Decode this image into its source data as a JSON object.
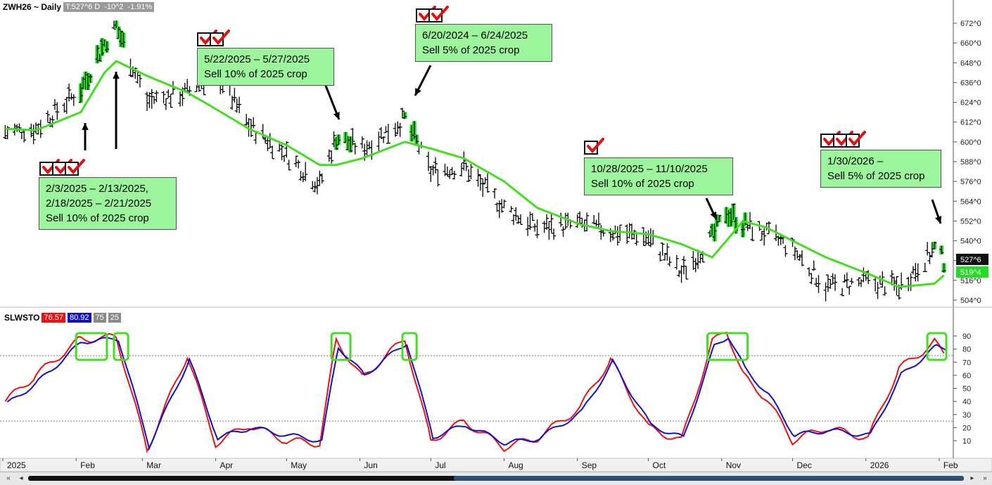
{
  "header": {
    "symbol": "ZWH26 ~ Daily",
    "quote": "T:527^6 D",
    "change": "-10^2",
    "change_pct": "-1.91%"
  },
  "oscillator": {
    "name": "SLWSTO",
    "k_value": "76.57",
    "d_value": "80.92",
    "upper": "75",
    "lower": "25"
  },
  "price_axis": {
    "labels": [
      "672^0",
      "660^0",
      "648^0",
      "636^0",
      "624^0",
      "612^0",
      "600^0",
      "588^0",
      "576^0",
      "564^0",
      "552^0",
      "540^0",
      "528^0",
      "516^0",
      "504^0"
    ],
    "last_price": "527^6",
    "ma_value": "519^4"
  },
  "osc_axis": {
    "labels": [
      "90",
      "80",
      "70",
      "60",
      "50",
      "40",
      "30",
      "20",
      "10"
    ]
  },
  "time_axis": {
    "labels": [
      "2025",
      "Feb",
      "Mar",
      "Apr",
      "May",
      "Jun",
      "Jul",
      "Aug",
      "Sep",
      "Oct",
      "Nov",
      "Dec",
      "2026",
      "Feb"
    ]
  },
  "annotations": [
    {
      "lines": [
        "2/3/2025 – 2/13/2025,",
        "2/18/2025 – 2/21/2025",
        "Sell 10% of 2025 crop"
      ]
    },
    {
      "lines": [
        "5/22/2025 – 5/27/2025",
        "Sell 10% of 2025 crop"
      ]
    },
    {
      "lines": [
        "6/20/2024 – 6/24/2025",
        "Sell 5% of 2025 crop"
      ]
    },
    {
      "lines": [
        "10/28/2025 – 11/10/2025",
        "Sell 10% of 2025 crop"
      ]
    },
    {
      "lines": [
        "1/30/2026 –",
        "Sell 5% of 2025 crop"
      ]
    }
  ],
  "colors": {
    "price_bar": "#000000",
    "signal_bar": "#22dd22",
    "moving_average": "#44dd22",
    "stoch_k": "#ee1111",
    "stoch_d": "#1111cc",
    "note_fill": "#9cf59c",
    "highlight_box": "#44dd22"
  },
  "chart_data": [
    {
      "type": "line",
      "title": "ZWH26 ~ Daily",
      "ylim": [
        500,
        678
      ],
      "x": [
        "2025-01-02",
        "2025-01-15",
        "2025-02-03",
        "2025-02-13",
        "2025-02-18",
        "2025-03-03",
        "2025-03-20",
        "2025-04-01",
        "2025-04-15",
        "2025-05-01",
        "2025-05-15",
        "2025-05-22",
        "2025-06-02",
        "2025-06-20",
        "2025-07-01",
        "2025-07-15",
        "2025-08-01",
        "2025-08-15",
        "2025-09-02",
        "2025-09-15",
        "2025-10-01",
        "2025-10-15",
        "2025-10-28",
        "2025-11-03",
        "2025-11-10",
        "2025-11-20",
        "2025-12-01",
        "2025-12-15",
        "2026-01-02",
        "2026-01-15",
        "2026-01-30",
        "2026-02-03"
      ],
      "series": [
        {
          "values": [
            606,
            608,
            632,
            660,
            670,
            625,
            630,
            642,
            610,
            592,
            574,
            603,
            596,
            614,
            582,
            585,
            560,
            548,
            550,
            546,
            542,
            520,
            542,
            558,
            550,
            544,
            535,
            512,
            515,
            512,
            535,
            528
          ]
        },
        {
          "values": [
            608,
            607,
            618,
            642,
            649,
            640,
            630,
            620,
            608,
            598,
            586,
            586,
            590,
            600,
            596,
            590,
            576,
            560,
            550,
            546,
            544,
            538,
            530,
            540,
            552,
            548,
            540,
            530,
            520,
            512,
            514,
            519
          ]
        }
      ]
    },
    {
      "type": "line",
      "title": "SLWSTO",
      "ylim": [
        0,
        100
      ],
      "x": [
        "2025-01-02",
        "2025-01-15",
        "2025-02-03",
        "2025-02-13",
        "2025-02-18",
        "2025-03-03",
        "2025-03-20",
        "2025-04-01",
        "2025-04-15",
        "2025-05-01",
        "2025-05-15",
        "2025-05-22",
        "2025-06-02",
        "2025-06-20",
        "2025-07-01",
        "2025-07-15",
        "2025-08-01",
        "2025-08-15",
        "2025-09-02",
        "2025-09-15",
        "2025-10-01",
        "2025-10-15",
        "2025-10-28",
        "2025-11-03",
        "2025-11-10",
        "2025-11-20",
        "2025-12-01",
        "2025-12-15",
        "2026-01-02",
        "2026-01-15",
        "2026-01-30",
        "2026-02-03"
      ],
      "series": [
        {
          "values": [
            40,
            60,
            88,
            88,
            90,
            3,
            75,
            8,
            22,
            10,
            8,
            87,
            58,
            88,
            10,
            25,
            5,
            12,
            35,
            72,
            20,
            10,
            85,
            95,
            60,
            42,
            10,
            20,
            12,
            65,
            85,
            77
          ]
        },
        {
          "values": [
            38,
            55,
            86,
            87,
            88,
            6,
            72,
            12,
            20,
            14,
            10,
            82,
            60,
            85,
            13,
            22,
            8,
            12,
            32,
            70,
            22,
            12,
            82,
            90,
            65,
            45,
            14,
            18,
            14,
            60,
            82,
            81
          ]
        }
      ]
    }
  ]
}
